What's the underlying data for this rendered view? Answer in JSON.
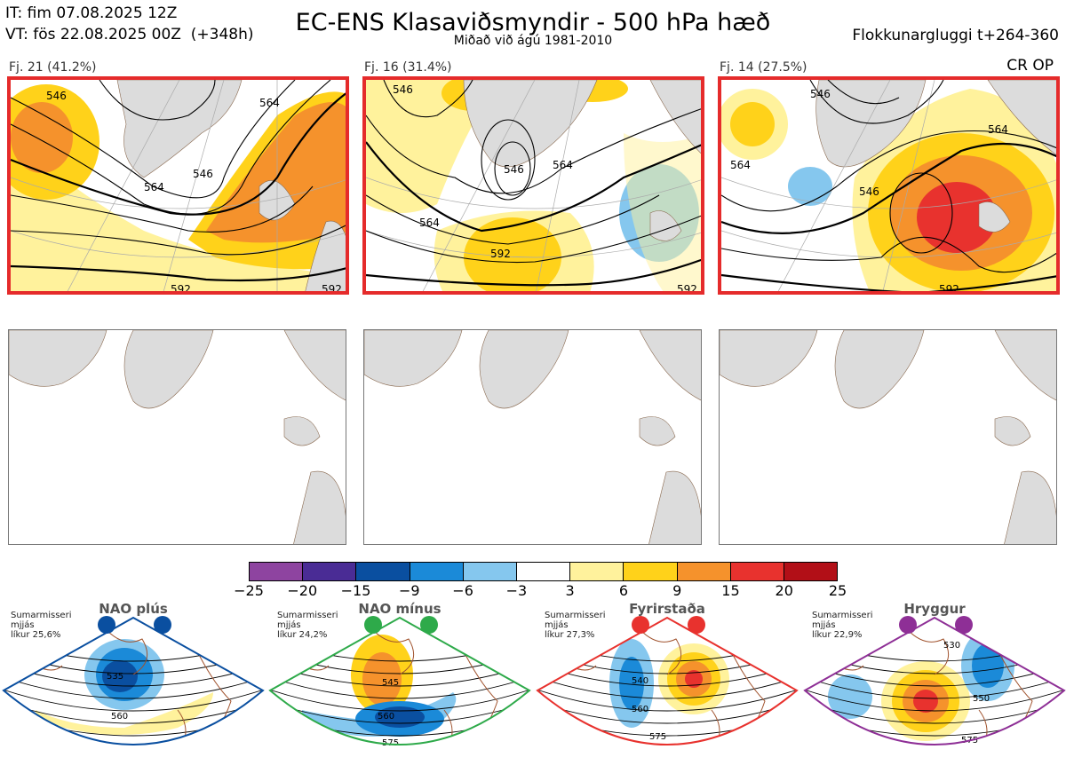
{
  "header": {
    "it_line": "IT: fim 07.08.2025 12Z",
    "vt_line": "VT: fös 22.08.2025 00Z  (+348h)",
    "title": "EC-ENS Klasaviðsmyndir - 500 hPa hæð",
    "subtitle": "Miðað við ágú 1981-2010",
    "window_label": "Flokkunargluggi t+264-360"
  },
  "clusters": [
    {
      "label": "Fj. 21 (41.2%)",
      "contour_labels": [
        "546",
        "546",
        "564",
        "564",
        "592",
        "592"
      ]
    },
    {
      "label": "Fj. 16 (31.4%)",
      "contour_labels": [
        "546",
        "546",
        "564",
        "564",
        "592",
        "592"
      ]
    },
    {
      "label": "Fj. 14 (27.5%)",
      "contour_labels": [
        "546",
        "546",
        "564",
        "564",
        "592"
      ],
      "tag": "CR OP"
    }
  ],
  "colorbar": {
    "ticks": [
      "−25",
      "−20",
      "−15",
      "−9",
      "−6",
      "−3",
      "3",
      "6",
      "9",
      "15",
      "20",
      "25"
    ],
    "colors": [
      "#8e44a0",
      "#4a2c95",
      "#0a4fa0",
      "#1b8ad8",
      "#85c7ee",
      "#ffffff",
      "#fff29c",
      "#ffd21a",
      "#f5922c",
      "#e8322e",
      "#b20f17"
    ]
  },
  "regimes": [
    {
      "name": "NAO plús",
      "season": "Sumarmisseri",
      "period": "mjjás",
      "likelihood": "líkur 25,6%",
      "color": "#0a4fa0",
      "contour_labels": [
        "535",
        "560"
      ]
    },
    {
      "name": "NAO mínus",
      "season": "Sumarmisseri",
      "period": "mjjás",
      "likelihood": "líkur 24,2%",
      "color": "#2eaa4a",
      "contour_labels": [
        "545",
        "560",
        "575"
      ]
    },
    {
      "name": "Fyrirstaða",
      "season": "Sumarmisseri",
      "period": "mjjás",
      "likelihood": "líkur 27,3%",
      "color": "#e8322e",
      "contour_labels": [
        "540",
        "560",
        "575"
      ]
    },
    {
      "name": "Hryggur",
      "season": "Sumarmisseri",
      "period": "mjjás",
      "likelihood": "líkur 22,9%",
      "color": "#8e2f96",
      "contour_labels": [
        "530",
        "550",
        "575"
      ]
    }
  ]
}
